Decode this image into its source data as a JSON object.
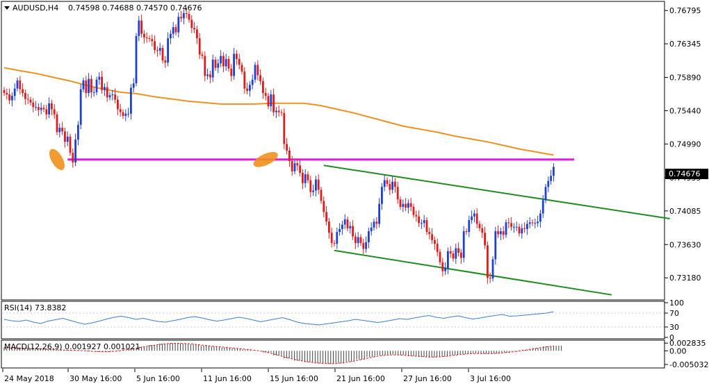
{
  "header": {
    "symbol": "AUDUSD,H4",
    "ohlc": "0.74598 0.74688 0.74570 0.74676",
    "menu_icon": "triangle-down-icon"
  },
  "colors": {
    "bull": "#1e3fd6",
    "bear": "#e01b1b",
    "ma": "#f0901e",
    "level": "#e01ee0",
    "channel": "#1e8c1e",
    "marker": "#f0901e",
    "rsi": "#3a7dd0",
    "macd_hist": "#404040",
    "macd_signal": "#e01b1b",
    "price_box": "#000000"
  },
  "chart_data": [
    {
      "type": "candlestick",
      "title": "",
      "symbol": "AUDUSD",
      "timeframe": "H4",
      "ylim": [
        0.729,
        0.769
      ],
      "yticks": [
        "0.76795",
        "0.76345",
        "0.75890",
        "0.75440",
        "0.74990",
        "0.74535",
        "0.74085",
        "0.73630",
        "0.73180"
      ],
      "xticks": [
        "24 May 2018",
        "30 May 16:00",
        "5 Jun 16:00",
        "11 Jun 16:00",
        "15 Jun 16:00",
        "21 Jun 16:00",
        "27 Jun 16:00",
        "3 Jul 16:00"
      ],
      "last_price": "0.74676",
      "close": [
        0.7568,
        0.7566,
        0.7558,
        0.7564,
        0.7574,
        0.7585,
        0.7573,
        0.7568,
        0.756,
        0.7559,
        0.7555,
        0.7549,
        0.7549,
        0.7545,
        0.7548,
        0.7546,
        0.7539,
        0.7554,
        0.7546,
        0.7539,
        0.7515,
        0.7521,
        0.7516,
        0.7502,
        0.7509,
        0.7487,
        0.7474,
        0.7505,
        0.7525,
        0.7573,
        0.7585,
        0.7568,
        0.7587,
        0.7569,
        0.7569,
        0.7586,
        0.759,
        0.7572,
        0.7576,
        0.7562,
        0.7565,
        0.7566,
        0.7559,
        0.7546,
        0.7542,
        0.7537,
        0.754,
        0.754,
        0.7575,
        0.7581,
        0.7645,
        0.7666,
        0.7648,
        0.7643,
        0.7642,
        0.7641,
        0.7638,
        0.7626,
        0.7625,
        0.7629,
        0.7612,
        0.7609,
        0.7642,
        0.7648,
        0.7657,
        0.765,
        0.7671,
        0.7669,
        0.7676,
        0.7675,
        0.7667,
        0.7656,
        0.7654,
        0.7642,
        0.762,
        0.7618,
        0.7591,
        0.7593,
        0.7589,
        0.7613,
        0.7602,
        0.7608,
        0.7618,
        0.7604,
        0.7614,
        0.7601,
        0.7591,
        0.7621,
        0.7614,
        0.7606,
        0.7597,
        0.7574,
        0.7571,
        0.7579,
        0.7586,
        0.7606,
        0.7592,
        0.7584,
        0.7568,
        0.7564,
        0.755,
        0.7566,
        0.7542,
        0.7544,
        0.7542,
        0.7541,
        0.7499,
        0.749,
        0.7476,
        0.7462,
        0.7473,
        0.747,
        0.746,
        0.7446,
        0.7458,
        0.745,
        0.7434,
        0.7436,
        0.7451,
        0.7437,
        0.7422,
        0.7407,
        0.7394,
        0.7379,
        0.7365,
        0.7364,
        0.738,
        0.7384,
        0.739,
        0.7397,
        0.7385,
        0.7388,
        0.7374,
        0.7365,
        0.7373,
        0.7365,
        0.7357,
        0.7366,
        0.7381,
        0.7386,
        0.7394,
        0.7391,
        0.7418,
        0.7441,
        0.745,
        0.7445,
        0.7437,
        0.7448,
        0.7441,
        0.7424,
        0.7414,
        0.7418,
        0.7413,
        0.7419,
        0.7414,
        0.7403,
        0.7401,
        0.7392,
        0.7392,
        0.7396,
        0.738,
        0.7377,
        0.7369,
        0.7364,
        0.7353,
        0.7339,
        0.7327,
        0.7331,
        0.7354,
        0.7351,
        0.7344,
        0.7358,
        0.7352,
        0.7345,
        0.7381,
        0.738,
        0.7396,
        0.7401,
        0.7405,
        0.7391,
        0.7385,
        0.7379,
        0.7362,
        0.7318,
        0.7317,
        0.7343,
        0.7381,
        0.7377,
        0.7381,
        0.7376,
        0.7393,
        0.7392,
        0.7387,
        0.7387,
        0.7387,
        0.7378,
        0.7385,
        0.7384,
        0.7391,
        0.7393,
        0.7392,
        0.7392,
        0.7394,
        0.7405,
        0.7423,
        0.7441,
        0.7449,
        0.7456,
        0.7468
      ]
    },
    {
      "type": "line",
      "name": "",
      "role": "moving-average",
      "x_start_index": 0,
      "values": [
        0.7602,
        0.7598,
        0.7594,
        0.7589,
        0.7584,
        0.7578,
        0.7573,
        0.7569,
        0.7567,
        0.7563,
        0.756,
        0.7557,
        0.7555,
        0.7553,
        0.7553,
        0.7553,
        0.7554,
        0.7554,
        0.7554,
        0.7551,
        0.7546,
        0.7541,
        0.7535,
        0.7529,
        0.7523,
        0.7519,
        0.7515,
        0.751,
        0.7506,
        0.7502,
        0.7497,
        0.7492,
        0.7488,
        0.7484
      ]
    },
    {
      "type": "line",
      "name": "",
      "role": "horizontal-level",
      "value": 0.7478
    },
    {
      "type": "line",
      "name": "",
      "role": "channel-upper",
      "points": [
        [
          121,
          0.747
        ],
        [
          252,
          0.7398
        ]
      ]
    },
    {
      "type": "line",
      "name": "",
      "role": "channel-lower",
      "points": [
        [
          125,
          0.7355
        ],
        [
          230,
          0.7295
        ]
      ]
    },
    {
      "type": "line",
      "title": "RSI(14) 73.8382",
      "ylim": [
        0,
        100
      ],
      "yticks": [
        "100",
        "70",
        "30",
        "0"
      ],
      "values": [
        52,
        48,
        46,
        50,
        44,
        40,
        47,
        51,
        55,
        49,
        43,
        38,
        42,
        47,
        53,
        58,
        61,
        57,
        52,
        55,
        50,
        46,
        44,
        48,
        52,
        57,
        60,
        56,
        51,
        47,
        50,
        54,
        58,
        55,
        50,
        45,
        49,
        53,
        57,
        51,
        44,
        40,
        38,
        36,
        39,
        42,
        45,
        48,
        52,
        49,
        46,
        43,
        46,
        50,
        54,
        52,
        56,
        60,
        63,
        58,
        55,
        59,
        62,
        57,
        53,
        56,
        60,
        63,
        66,
        61,
        62,
        64,
        66,
        68,
        70,
        74
      ]
    },
    {
      "type": "bar",
      "title": "MACD(12,26,9) 0.001927 0.001021",
      "ylim": [
        -0.0058,
        0.0034
      ],
      "yticks": [
        "0.002835",
        "0.00",
        "-0.005032"
      ],
      "values": [
        0.0012,
        0.0011,
        0.0009,
        0.0007,
        0.0005,
        0.0003,
        0.0002,
        0.0001,
        -0.0002,
        -0.0004,
        -0.0003,
        0.0002,
        0.0008,
        0.0015,
        0.0021,
        0.0026,
        0.0028,
        0.0027,
        0.0024,
        0.0019,
        0.0016,
        0.0012,
        0.0009,
        0.0005,
        0.0001,
        -0.0006,
        -0.0017,
        -0.0028,
        -0.0036,
        -0.0042,
        -0.0046,
        -0.0048,
        -0.0046,
        -0.004,
        -0.0032,
        -0.0023,
        -0.0017,
        -0.0014,
        -0.0016,
        -0.0019,
        -0.0022,
        -0.0024,
        -0.0021,
        -0.0016,
        -0.0012,
        -0.0009,
        -0.0011,
        -0.001,
        -0.0006,
        -0.0002,
        0.0004,
        0.001,
        0.0016,
        0.0019
      ]
    }
  ]
}
